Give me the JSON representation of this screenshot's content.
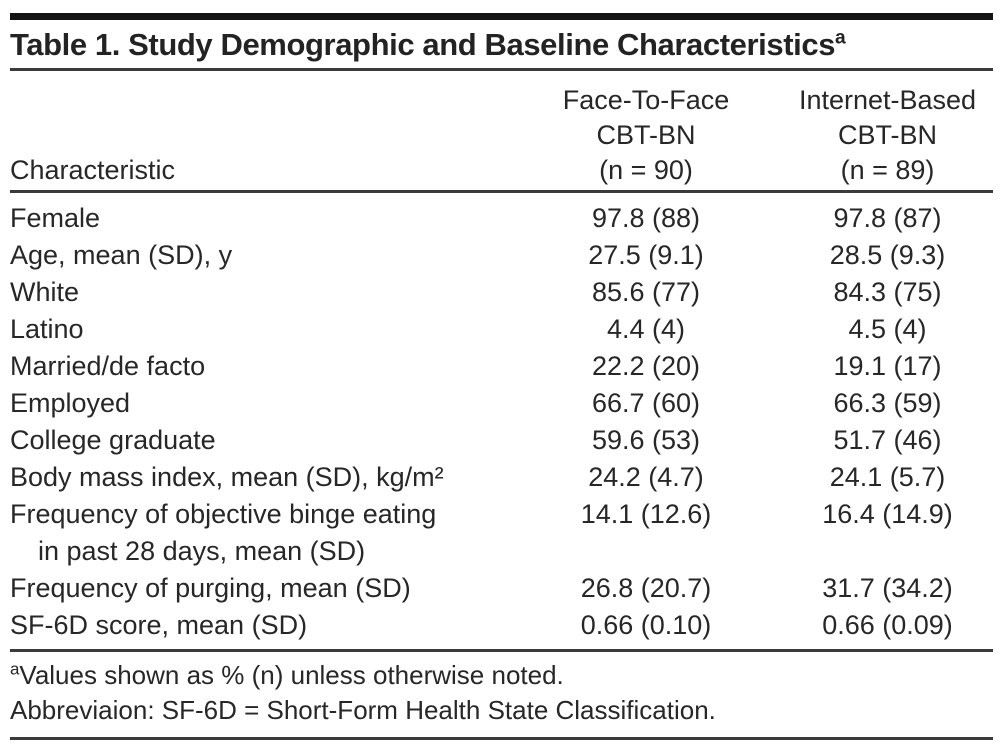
{
  "page": {
    "title": "Table 1. Study Demographic and Baseline Characteristics",
    "title_superscript": "a"
  },
  "table": {
    "characteristic_header": "Characteristic",
    "columns": [
      {
        "name_line1": "Face-To-Face",
        "name_line2": "CBT-BN",
        "n_label": "(n = 90)"
      },
      {
        "name_line1": "Internet-Based",
        "name_line2": "CBT-BN",
        "n_label": "(n = 89)"
      }
    ],
    "rows": [
      {
        "label": "Female",
        "face_to_face": "97.8 (88)",
        "internet_based": "97.8 (87)"
      },
      {
        "label": "Age, mean (SD), y",
        "face_to_face": "27.5 (9.1)",
        "internet_based": "28.5 (9.3)"
      },
      {
        "label": "White",
        "face_to_face": "85.6 (77)",
        "internet_based": "84.3 (75)"
      },
      {
        "label": "Latino",
        "face_to_face": "4.4 (4)",
        "internet_based": "4.5 (4)"
      },
      {
        "label": "Married/de facto",
        "face_to_face": "22.2 (20)",
        "internet_based": "19.1 (17)"
      },
      {
        "label": "Employed",
        "face_to_face": "66.7 (60)",
        "internet_based": "66.3 (59)"
      },
      {
        "label": "College graduate",
        "face_to_face": "59.6 (53)",
        "internet_based": "51.7 (46)"
      },
      {
        "label": "Body mass index, mean (SD), kg/m²",
        "face_to_face": "24.2 (4.7)",
        "internet_based": "24.1 (5.7)"
      },
      {
        "label": "Frequency of objective binge eating",
        "label_continuation": "in past 28 days, mean (SD)",
        "face_to_face": "14.1 (12.6)",
        "internet_based": "16.4 (14.9)"
      },
      {
        "label": "Frequency of purging, mean (SD)",
        "face_to_face": "26.8 (20.7)",
        "internet_based": "31.7 (34.2)"
      },
      {
        "label": "SF-6D score, mean (SD)",
        "face_to_face": "0.66 (0.10)",
        "internet_based": "0.66 (0.09)"
      }
    ]
  },
  "footnotes": {
    "note_marker": "a",
    "note_text": "Values shown as % (n) unless otherwise noted.",
    "abbreviation_text": "Abbreviaion: SF-6D = Short-Form Health State Classification."
  },
  "colors": {
    "text": "#272727",
    "rule": "#3a3a3a",
    "top_bar": "#141414",
    "background": "#ffffff"
  }
}
